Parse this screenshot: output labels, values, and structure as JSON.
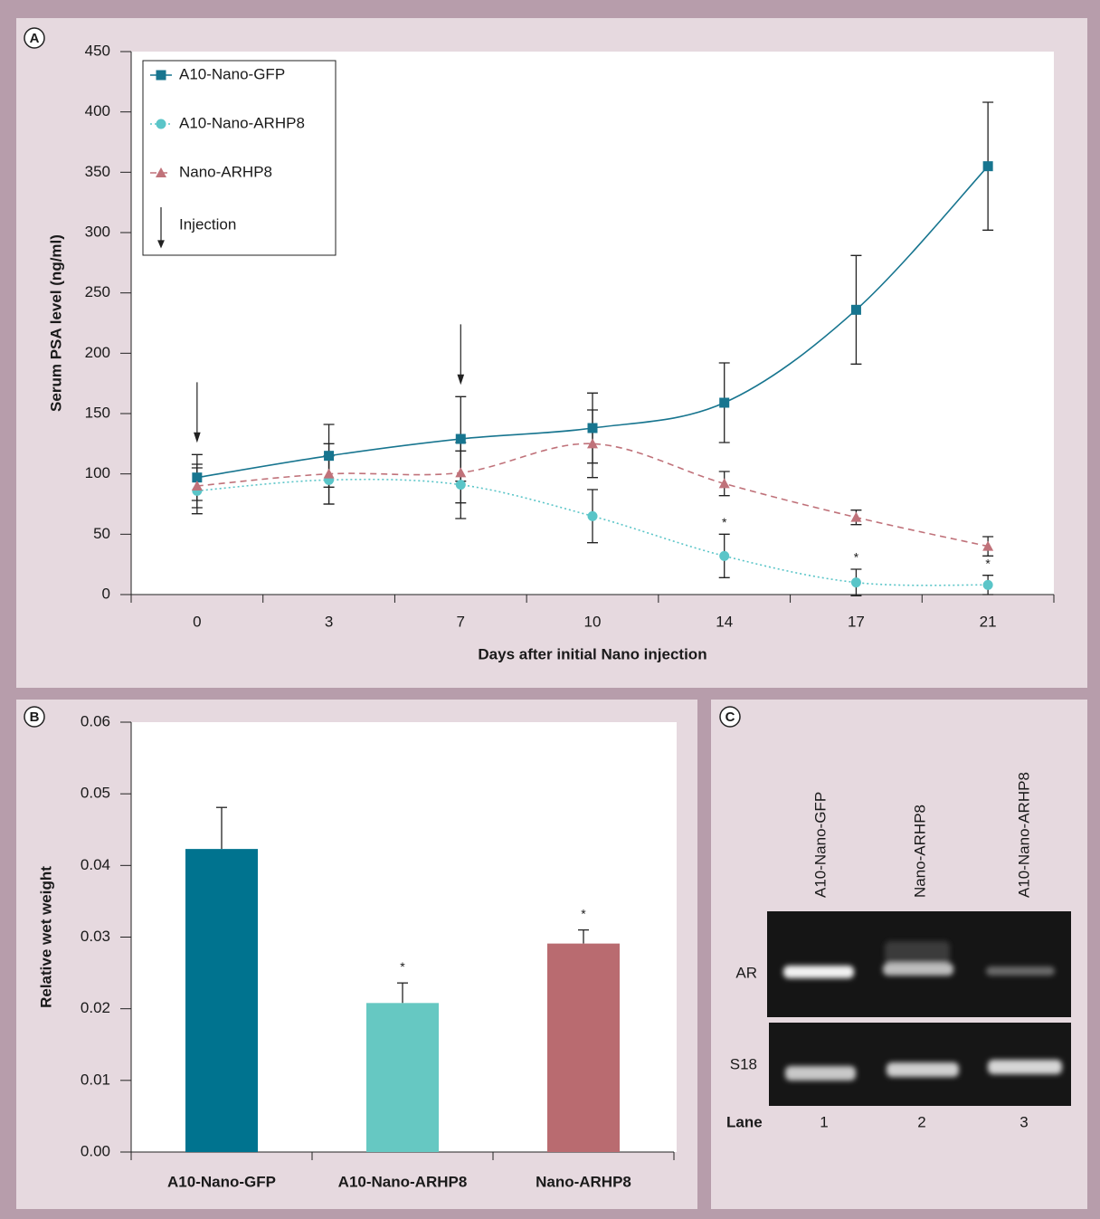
{
  "chart_data": [
    {
      "type": "line",
      "panel_label": "A",
      "xlabel": "Days after initial Nano injection",
      "ylabel": "Serum PSA level (ng/ml)",
      "categories": [
        "0",
        "3",
        "7",
        "10",
        "14",
        "17",
        "21"
      ],
      "ylim": [
        0,
        450
      ],
      "yticks": [
        0,
        50,
        100,
        150,
        200,
        250,
        300,
        350,
        400,
        450
      ],
      "series": [
        {
          "name": "A10-Nano-GFP",
          "color": "#17758f",
          "line_style": "solid",
          "marker": "square",
          "values": [
            97,
            115,
            129,
            138,
            159,
            236,
            355
          ],
          "errors": [
            19,
            26,
            35,
            29,
            33,
            45,
            53
          ]
        },
        {
          "name": "A10-Nano-ARHP8",
          "color": "#5ac5c8",
          "line_style": "dotted",
          "marker": "circle",
          "values": [
            86,
            95,
            91,
            65,
            32,
            10,
            8
          ],
          "errors": [
            19,
            20,
            28,
            22,
            18,
            11,
            8
          ],
          "significance": [
            null,
            null,
            null,
            null,
            "*",
            "*",
            "*"
          ]
        },
        {
          "name": "Nano-ARHP8",
          "color": "#c0727a",
          "line_style": "dashed",
          "marker": "triangle",
          "values": [
            90,
            100,
            101,
            125,
            92,
            64,
            40
          ],
          "errors": [
            18,
            25,
            25,
            28,
            10,
            6,
            8
          ]
        }
      ],
      "injection_label": "Injection",
      "injections": [
        "0",
        "7"
      ]
    },
    {
      "type": "bar",
      "panel_label": "B",
      "ylabel": "Relative wet weight",
      "categories": [
        "A10-Nano-GFP",
        "A10-Nano-ARHP8",
        "Nano-ARHP8"
      ],
      "values": [
        0.0423,
        0.0208,
        0.0291
      ],
      "errors": [
        0.0058,
        0.0028,
        0.0019
      ],
      "colors": [
        "#00738f",
        "#66c8c2",
        "#b96b70"
      ],
      "significance": [
        null,
        "*",
        "*"
      ],
      "ylim": [
        0,
        0.06
      ],
      "yticks": [
        {
          "value": 0,
          "label": "0.00"
        },
        0.01,
        0.02,
        0.03,
        0.04,
        0.05,
        0.06
      ]
    }
  ],
  "gel": {
    "panel_label": "C",
    "lanes": [
      "A10-Nano-GFP",
      "Nano-ARHP8",
      "A10-Nano-ARHP8"
    ],
    "rows": [
      "AR",
      "S18"
    ],
    "lane_title": "Lane",
    "lane_numbers": [
      "1",
      "2",
      "3"
    ]
  }
}
